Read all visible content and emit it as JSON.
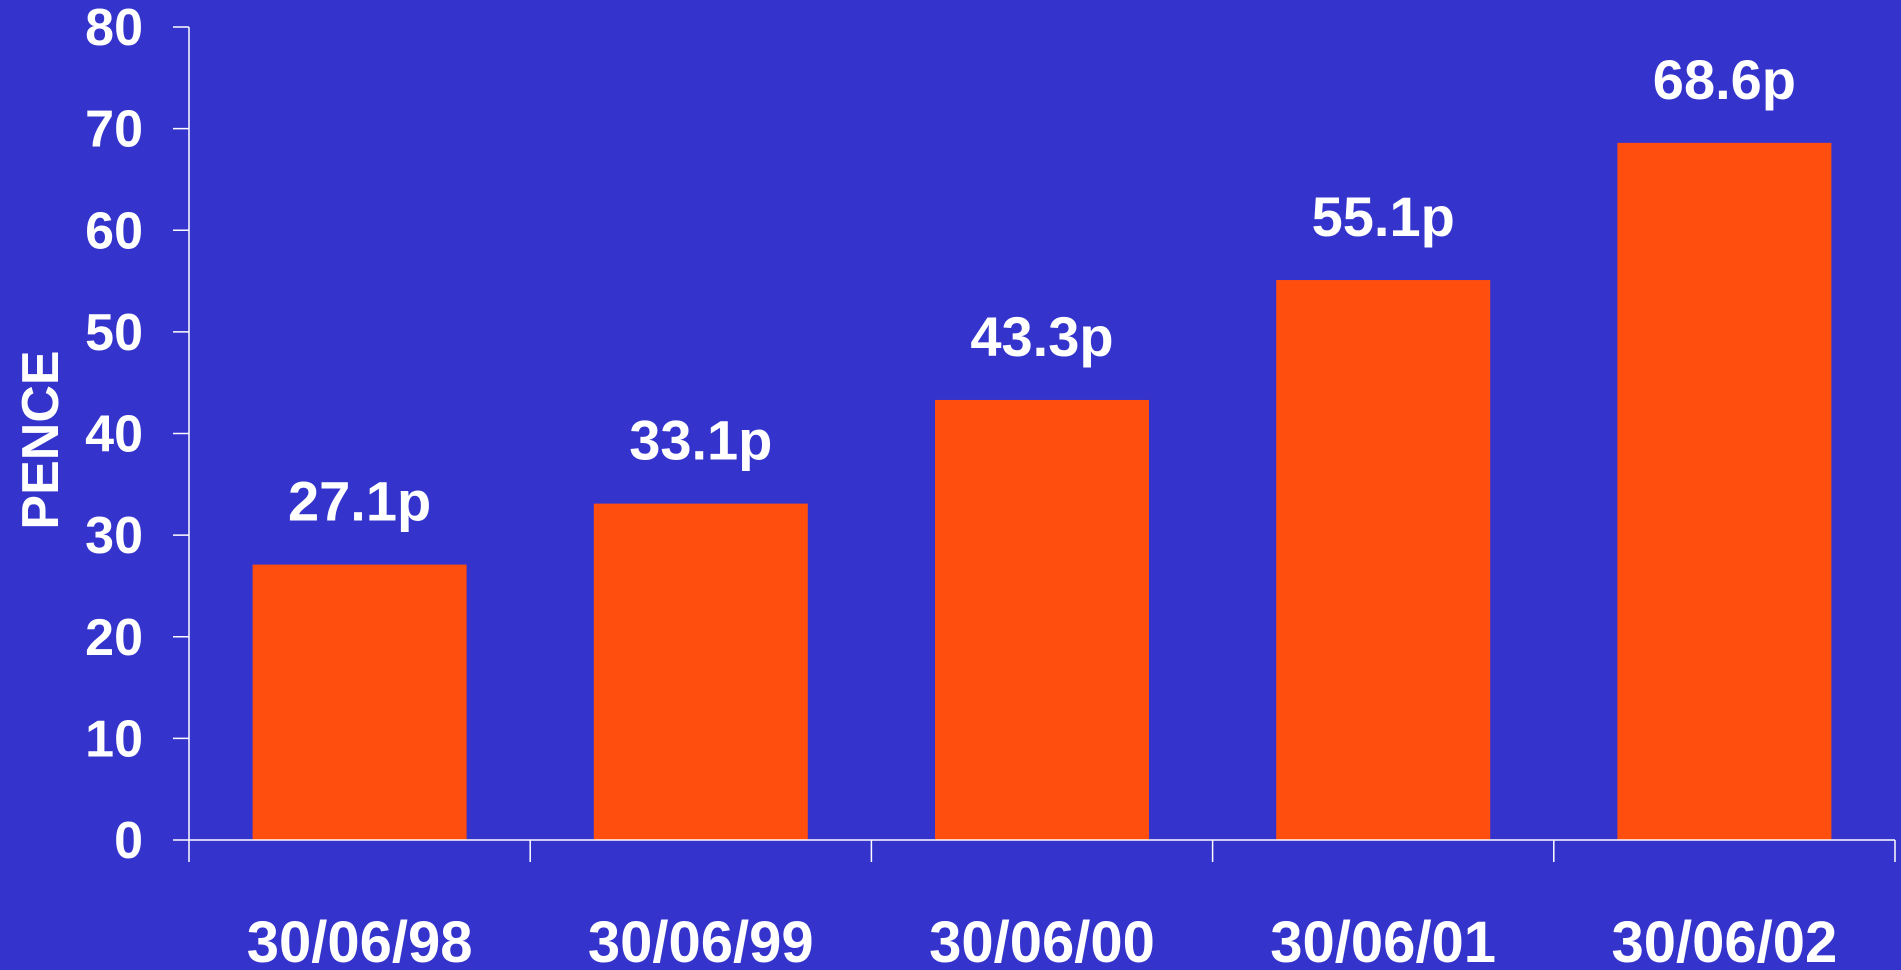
{
  "chart_data": {
    "type": "bar",
    "title": "",
    "xlabel": "",
    "ylabel": "PENCE",
    "ylim": [
      0,
      80
    ],
    "yticks": [
      0,
      10,
      20,
      30,
      40,
      50,
      60,
      70,
      80
    ],
    "categories": [
      "30/06/98",
      "30/06/99",
      "30/06/00",
      "30/06/01",
      "30/06/02"
    ],
    "values": [
      27.1,
      33.1,
      43.3,
      55.1,
      68.6
    ],
    "data_labels": [
      "27.1p",
      "33.1p",
      "43.3p",
      "55.1p",
      "68.6p"
    ],
    "grid": false,
    "legend": "none",
    "colors": {
      "background": "#3434cc",
      "bar": "#ff4e0e",
      "axis": "#ffffff",
      "text": "#ffffff"
    }
  }
}
